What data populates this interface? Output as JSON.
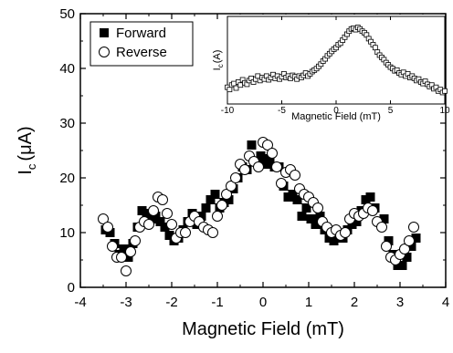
{
  "chart_data": [
    {
      "type": "scatter",
      "xlabel": "Magnetic Field (mT)",
      "ylabel": "I",
      "ylabel_sub": "c",
      "ylabel_unit": "(μA)",
      "xlim": [
        -4,
        4
      ],
      "ylim": [
        0,
        50
      ],
      "x_ticks": [
        "-4",
        "-3",
        "-2",
        "-1",
        "0",
        "1",
        "2",
        "3",
        "4"
      ],
      "y_ticks": [
        "0",
        "10",
        "20",
        "30",
        "40",
        "50"
      ],
      "legend_position": "top-left",
      "series": [
        {
          "name": "Forward",
          "marker": "filled-square",
          "points": [
            [
              -3.45,
              10.5
            ],
            [
              -3.35,
              10.0
            ],
            [
              -3.25,
              8.0
            ],
            [
              -3.15,
              6.0
            ],
            [
              -3.05,
              7.0
            ],
            [
              -2.95,
              5.5
            ],
            [
              -2.85,
              8.0
            ],
            [
              -2.75,
              11.0
            ],
            [
              -2.65,
              14.0
            ],
            [
              -2.55,
              13.5
            ],
            [
              -2.45,
              12.5
            ],
            [
              -2.35,
              13.0
            ],
            [
              -2.25,
              12.0
            ],
            [
              -2.15,
              11.0
            ],
            [
              -2.05,
              9.5
            ],
            [
              -1.95,
              8.5
            ],
            [
              -1.85,
              9.0
            ],
            [
              -1.75,
              10.5
            ],
            [
              -1.65,
              12.0
            ],
            [
              -1.55,
              13.5
            ],
            [
              -1.45,
              11.5
            ],
            [
              -1.35,
              13.0
            ],
            [
              -1.25,
              14.5
            ],
            [
              -1.15,
              16.0
            ],
            [
              -1.05,
              17.0
            ],
            [
              -0.95,
              14.5
            ],
            [
              -0.85,
              15.5
            ],
            [
              -0.75,
              16.0
            ],
            [
              -0.65,
              18.0
            ],
            [
              -0.55,
              20.0
            ],
            [
              -0.45,
              22.0
            ],
            [
              -0.35,
              21.5
            ],
            [
              -0.25,
              26.0
            ],
            [
              -0.15,
              23.0
            ],
            [
              -0.05,
              24.0
            ],
            [
              0.05,
              22.5
            ],
            [
              0.15,
              23.5
            ],
            [
              0.25,
              22.0
            ],
            [
              0.35,
              22.0
            ],
            [
              0.45,
              18.5
            ],
            [
              0.55,
              16.5
            ],
            [
              0.65,
              17.0
            ],
            [
              0.75,
              16.0
            ],
            [
              0.85,
              13.0
            ],
            [
              0.95,
              14.5
            ],
            [
              1.05,
              12.5
            ],
            [
              1.15,
              11.5
            ],
            [
              1.25,
              13.0
            ],
            [
              1.35,
              10.5
            ],
            [
              1.45,
              9.0
            ],
            [
              1.55,
              8.5
            ],
            [
              1.65,
              9.5
            ],
            [
              1.75,
              9.0
            ],
            [
              1.85,
              10.5
            ],
            [
              1.95,
              11.5
            ],
            [
              2.05,
              12.0
            ],
            [
              2.15,
              14.0
            ],
            [
              2.25,
              16.0
            ],
            [
              2.35,
              16.5
            ],
            [
              2.45,
              14.5
            ],
            [
              2.55,
              12.0
            ],
            [
              2.65,
              12.5
            ],
            [
              2.75,
              8.5
            ],
            [
              2.85,
              6.0
            ],
            [
              2.95,
              4.0
            ],
            [
              3.05,
              4.0
            ],
            [
              3.15,
              5.5
            ],
            [
              3.25,
              7.5
            ],
            [
              3.35,
              9.0
            ]
          ]
        },
        {
          "name": "Reverse",
          "marker": "open-circle",
          "points": [
            [
              -3.5,
              12.5
            ],
            [
              -3.4,
              11.0
            ],
            [
              -3.3,
              7.5
            ],
            [
              -3.2,
              5.5
            ],
            [
              -3.1,
              5.5
            ],
            [
              -3.0,
              3.0
            ],
            [
              -2.9,
              6.5
            ],
            [
              -2.8,
              8.5
            ],
            [
              -2.7,
              11.0
            ],
            [
              -2.6,
              12.0
            ],
            [
              -2.5,
              11.5
            ],
            [
              -2.4,
              14.0
            ],
            [
              -2.3,
              16.5
            ],
            [
              -2.2,
              16.0
            ],
            [
              -2.1,
              13.5
            ],
            [
              -2.0,
              11.5
            ],
            [
              -1.9,
              9.0
            ],
            [
              -1.8,
              10.0
            ],
            [
              -1.7,
              10.0
            ],
            [
              -1.6,
              12.0
            ],
            [
              -1.5,
              13.0
            ],
            [
              -1.4,
              12.0
            ],
            [
              -1.3,
              11.0
            ],
            [
              -1.2,
              10.5
            ],
            [
              -1.1,
              10.0
            ],
            [
              -1.0,
              13.0
            ],
            [
              -0.9,
              15.0
            ],
            [
              -0.8,
              17.0
            ],
            [
              -0.7,
              18.5
            ],
            [
              -0.6,
              20.0
            ],
            [
              -0.5,
              22.5
            ],
            [
              -0.4,
              21.5
            ],
            [
              -0.3,
              24.0
            ],
            [
              -0.2,
              23.0
            ],
            [
              -0.1,
              22.0
            ],
            [
              0.0,
              26.5
            ],
            [
              0.1,
              26.0
            ],
            [
              0.2,
              24.5
            ],
            [
              0.3,
              22.0
            ],
            [
              0.4,
              19.0
            ],
            [
              0.5,
              21.0
            ],
            [
              0.6,
              21.5
            ],
            [
              0.7,
              20.5
            ],
            [
              0.8,
              18.0
            ],
            [
              0.9,
              17.0
            ],
            [
              1.0,
              16.5
            ],
            [
              1.1,
              15.5
            ],
            [
              1.2,
              14.5
            ],
            [
              1.3,
              12.0
            ],
            [
              1.4,
              11.0
            ],
            [
              1.5,
              10.0
            ],
            [
              1.6,
              10.5
            ],
            [
              1.7,
              9.5
            ],
            [
              1.8,
              10.0
            ],
            [
              1.9,
              12.5
            ],
            [
              2.0,
              13.5
            ],
            [
              2.1,
              13.0
            ],
            [
              2.2,
              13.5
            ],
            [
              2.3,
              14.5
            ],
            [
              2.4,
              14.0
            ],
            [
              2.5,
              12.0
            ],
            [
              2.6,
              11.0
            ],
            [
              2.7,
              7.5
            ],
            [
              2.8,
              5.5
            ],
            [
              2.9,
              5.0
            ],
            [
              3.0,
              6.0
            ],
            [
              3.1,
              7.0
            ],
            [
              3.2,
              8.5
            ],
            [
              3.3,
              11.0
            ]
          ]
        }
      ]
    },
    {
      "type": "scatter",
      "role": "inset",
      "xlabel": "Magnetic Field (mT)",
      "ylabel": "I",
      "ylabel_sub": "c",
      "ylabel_unit": "(A)",
      "xlim": [
        -10,
        10
      ],
      "x_ticks": [
        "-10",
        "-5",
        "0",
        "5",
        "10"
      ],
      "series": [
        {
          "marker": "open-square",
          "points": [
            [
              -10,
              0.15
            ],
            [
              -9.8,
              0.12
            ],
            [
              -9.6,
              0.18
            ],
            [
              -9.4,
              0.2
            ],
            [
              -9.2,
              0.14
            ],
            [
              -9.0,
              0.22
            ],
            [
              -8.8,
              0.18
            ],
            [
              -8.6,
              0.25
            ],
            [
              -8.4,
              0.21
            ],
            [
              -8.2,
              0.19
            ],
            [
              -8.0,
              0.24
            ],
            [
              -7.8,
              0.27
            ],
            [
              -7.6,
              0.22
            ],
            [
              -7.4,
              0.26
            ],
            [
              -7.2,
              0.3
            ],
            [
              -7.0,
              0.24
            ],
            [
              -6.8,
              0.28
            ],
            [
              -6.6,
              0.26
            ],
            [
              -6.4,
              0.3
            ],
            [
              -6.2,
              0.25
            ],
            [
              -6.0,
              0.28
            ],
            [
              -5.8,
              0.32
            ],
            [
              -5.6,
              0.27
            ],
            [
              -5.4,
              0.3
            ],
            [
              -5.2,
              0.26
            ],
            [
              -5.0,
              0.29
            ],
            [
              -4.8,
              0.33
            ],
            [
              -4.6,
              0.28
            ],
            [
              -4.4,
              0.3
            ],
            [
              -4.2,
              0.27
            ],
            [
              -4.0,
              0.31
            ],
            [
              -3.8,
              0.29
            ],
            [
              -3.6,
              0.26
            ],
            [
              -3.4,
              0.3
            ],
            [
              -3.2,
              0.28
            ],
            [
              -3.0,
              0.31
            ],
            [
              -2.8,
              0.34
            ],
            [
              -2.6,
              0.3
            ],
            [
              -2.4,
              0.33
            ],
            [
              -2.2,
              0.36
            ],
            [
              -2.0,
              0.38
            ],
            [
              -1.8,
              0.4
            ],
            [
              -1.6,
              0.43
            ],
            [
              -1.4,
              0.46
            ],
            [
              -1.2,
              0.5
            ],
            [
              -1.0,
              0.53
            ],
            [
              -0.8,
              0.57
            ],
            [
              -0.6,
              0.6
            ],
            [
              -0.4,
              0.63
            ],
            [
              -0.2,
              0.66
            ],
            [
              0.0,
              0.68
            ],
            [
              0.2,
              0.72
            ],
            [
              0.4,
              0.74
            ],
            [
              0.6,
              0.78
            ],
            [
              0.8,
              0.82
            ],
            [
              1.0,
              0.86
            ],
            [
              1.2,
              0.9
            ],
            [
              1.4,
              0.93
            ],
            [
              1.6,
              0.94
            ],
            [
              1.8,
              0.92
            ],
            [
              2.0,
              0.95
            ],
            [
              2.2,
              0.93
            ],
            [
              2.4,
              0.9
            ],
            [
              2.6,
              0.88
            ],
            [
              2.8,
              0.85
            ],
            [
              3.0,
              0.8
            ],
            [
              3.2,
              0.76
            ],
            [
              3.4,
              0.72
            ],
            [
              3.6,
              0.68
            ],
            [
              3.8,
              0.62
            ],
            [
              4.0,
              0.58
            ],
            [
              4.2,
              0.55
            ],
            [
              4.4,
              0.52
            ],
            [
              4.6,
              0.48
            ],
            [
              4.8,
              0.45
            ],
            [
              5.0,
              0.42
            ],
            [
              5.2,
              0.4
            ],
            [
              5.4,
              0.37
            ],
            [
              5.6,
              0.38
            ],
            [
              5.8,
              0.34
            ],
            [
              6.0,
              0.32
            ],
            [
              6.2,
              0.35
            ],
            [
              6.4,
              0.3
            ],
            [
              6.6,
              0.33
            ],
            [
              6.8,
              0.28
            ],
            [
              7.0,
              0.3
            ],
            [
              7.2,
              0.27
            ],
            [
              7.4,
              0.24
            ],
            [
              7.6,
              0.26
            ],
            [
              7.8,
              0.22
            ],
            [
              8.0,
              0.2
            ],
            [
              8.2,
              0.23
            ],
            [
              8.4,
              0.19
            ],
            [
              8.6,
              0.16
            ],
            [
              8.8,
              0.18
            ],
            [
              9.0,
              0.13
            ],
            [
              9.2,
              0.15
            ],
            [
              9.4,
              0.1
            ],
            [
              9.6,
              0.12
            ],
            [
              9.8,
              0.08
            ],
            [
              10.0,
              0.1
            ]
          ]
        }
      ]
    }
  ]
}
